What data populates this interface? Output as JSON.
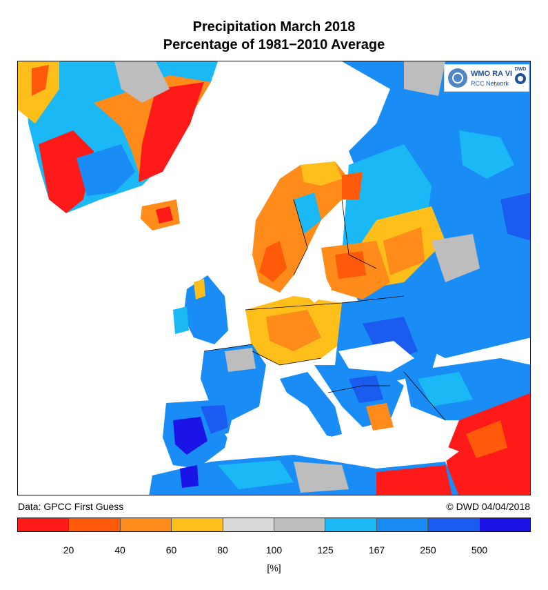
{
  "title_line1": "Precipitation March 2018",
  "title_line2": "Percentage of 1981−2010 Average",
  "logo": {
    "line1": "WMO RA VI",
    "line2": "RCC Network",
    "badge": "DWD"
  },
  "footer": {
    "source": "Data: GPCC First Guess",
    "credit": "© DWD 04/04/2018"
  },
  "legend": {
    "unit": "[%]",
    "ticks": [
      "20",
      "40",
      "60",
      "80",
      "100",
      "125",
      "167",
      "250",
      "500"
    ],
    "colors": [
      "#ff1a1a",
      "#ff5a0a",
      "#ff8c1a",
      "#ffbf1a",
      "#d9d9d9",
      "#bdbdbd",
      "#1ab8f5",
      "#1a8cf5",
      "#1a5cf0",
      "#1a14e6"
    ]
  },
  "map": {
    "regions": [
      {
        "name": "Greenland",
        "category": "mixed: red/orange coast, blue interior"
      },
      {
        "name": "Iceland",
        "category": "orange/red"
      },
      {
        "name": "Scandinavia",
        "category": "orange"
      },
      {
        "name": "Western Russia",
        "category": "blue"
      },
      {
        "name": "Iberian Peninsula",
        "category": "blue/dark blue"
      },
      {
        "name": "Central Europe",
        "category": "orange"
      },
      {
        "name": "Turkey",
        "category": "blue"
      },
      {
        "name": "Middle East",
        "category": "red"
      },
      {
        "name": "North Africa",
        "category": "blue/red"
      }
    ]
  }
}
